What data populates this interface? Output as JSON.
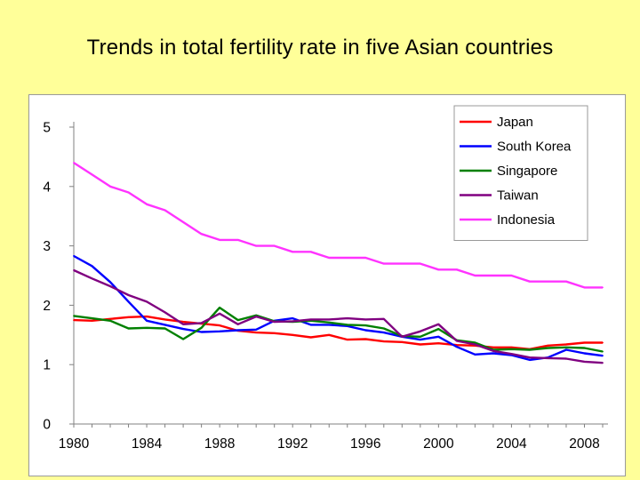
{
  "slide": {
    "title": "Trends in total fertility rate in five Asian countries"
  },
  "chart_data": {
    "type": "line",
    "title": "",
    "xlabel": "",
    "ylabel": "",
    "xlim": [
      1980,
      2009
    ],
    "ylim": [
      0,
      5
    ],
    "x_ticks": [
      1980,
      1984,
      1988,
      1992,
      1996,
      2000,
      2004,
      2008
    ],
    "y_ticks": [
      0,
      1,
      2,
      3,
      4,
      5
    ],
    "grid": false,
    "legend_position": "top-right",
    "x": [
      1980,
      1981,
      1982,
      1983,
      1984,
      1985,
      1986,
      1987,
      1988,
      1989,
      1990,
      1991,
      1992,
      1993,
      1994,
      1995,
      1996,
      1997,
      1998,
      1999,
      2000,
      2001,
      2002,
      2003,
      2004,
      2005,
      2006,
      2007,
      2008,
      2009
    ],
    "series": [
      {
        "name": "Japan",
        "color": "#FF0000",
        "values": [
          1.75,
          1.74,
          1.77,
          1.8,
          1.81,
          1.76,
          1.72,
          1.69,
          1.66,
          1.57,
          1.54,
          1.53,
          1.5,
          1.46,
          1.5,
          1.42,
          1.43,
          1.39,
          1.38,
          1.34,
          1.36,
          1.33,
          1.32,
          1.29,
          1.29,
          1.26,
          1.32,
          1.34,
          1.37,
          1.37
        ]
      },
      {
        "name": "South Korea",
        "color": "#0000FF",
        "values": [
          2.83,
          2.66,
          2.39,
          2.06,
          1.74,
          1.67,
          1.6,
          1.55,
          1.56,
          1.58,
          1.59,
          1.74,
          1.78,
          1.67,
          1.67,
          1.65,
          1.58,
          1.54,
          1.47,
          1.42,
          1.47,
          1.3,
          1.17,
          1.19,
          1.16,
          1.08,
          1.12,
          1.25,
          1.19,
          1.15
        ]
      },
      {
        "name": "Singapore",
        "color": "#008000",
        "values": [
          1.82,
          1.78,
          1.74,
          1.61,
          1.62,
          1.61,
          1.43,
          1.62,
          1.96,
          1.75,
          1.83,
          1.73,
          1.72,
          1.74,
          1.71,
          1.67,
          1.66,
          1.61,
          1.48,
          1.47,
          1.6,
          1.41,
          1.37,
          1.25,
          1.26,
          1.25,
          1.28,
          1.29,
          1.28,
          1.22
        ]
      },
      {
        "name": "Taiwan",
        "color": "#800080",
        "values": [
          2.59,
          2.45,
          2.32,
          2.17,
          2.06,
          1.88,
          1.68,
          1.7,
          1.86,
          1.68,
          1.81,
          1.72,
          1.73,
          1.76,
          1.76,
          1.78,
          1.76,
          1.77,
          1.47,
          1.56,
          1.68,
          1.4,
          1.34,
          1.23,
          1.18,
          1.12,
          1.11,
          1.1,
          1.05,
          1.03
        ]
      },
      {
        "name": "Indonesia",
        "color": "#FF33FF",
        "values": [
          4.4,
          4.2,
          4.0,
          3.9,
          3.7,
          3.6,
          3.4,
          3.2,
          3.1,
          3.1,
          3.0,
          3.0,
          2.9,
          2.9,
          2.8,
          2.8,
          2.8,
          2.7,
          2.7,
          2.7,
          2.6,
          2.6,
          2.5,
          2.5,
          2.5,
          2.4,
          2.4,
          2.4,
          2.3,
          2.3
        ]
      }
    ]
  }
}
